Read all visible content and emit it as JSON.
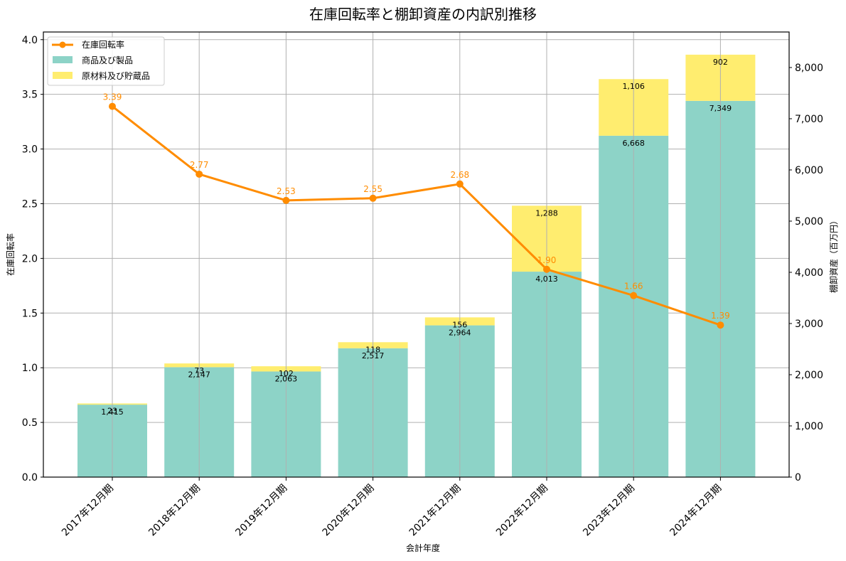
{
  "chart_data": {
    "type": "bar+line",
    "title": "在庫回転率と棚卸資産の内訳別推移",
    "xlabel": "会計年度",
    "ylabel_left": "在庫回転率",
    "ylabel_right": "棚卸資産（百万円）",
    "categories": [
      "2017年12月期",
      "2018年12月期",
      "2019年12月期",
      "2020年12月期",
      "2021年12月期",
      "2022年12月期",
      "2023年12月期",
      "2024年12月期"
    ],
    "series": [
      {
        "name": "在庫回転率",
        "type": "line",
        "axis": "left",
        "color": "#ff8c00",
        "values": [
          3.39,
          2.77,
          2.53,
          2.55,
          2.68,
          1.9,
          1.66,
          1.39
        ],
        "labels": [
          "3.39",
          "2.77",
          "2.53",
          "2.55",
          "2.68",
          "1.90",
          "1.66",
          "1.39"
        ]
      },
      {
        "name": "商品及び製品",
        "type": "bar",
        "stacked": true,
        "axis": "right",
        "color": "#8dd3c7",
        "values": [
          1415,
          2147,
          2063,
          2517,
          2964,
          4013,
          6668,
          7349
        ],
        "labels": [
          "1,415",
          "2,147",
          "2,063",
          "2,517",
          "2,964",
          "4,013",
          "6,668",
          "7,349"
        ]
      },
      {
        "name": "原材料及び貯蔵品",
        "type": "bar",
        "stacked": true,
        "axis": "right",
        "color": "#ffed6f",
        "values": [
          23,
          73,
          102,
          118,
          156,
          1288,
          1106,
          902
        ],
        "labels": [
          "23",
          "73",
          "102",
          "118",
          "156",
          "1,288",
          "1,106",
          "902"
        ]
      }
    ],
    "ylim_left": [
      0,
      4.07
    ],
    "ylim_right": [
      0,
      8694
    ],
    "yticks_left": [
      "0.0",
      "0.5",
      "1.0",
      "1.5",
      "2.0",
      "2.5",
      "3.0",
      "3.5",
      "4.0"
    ],
    "yticks_right": [
      "0",
      "1,000",
      "2,000",
      "3,000",
      "4,000",
      "5,000",
      "6,000",
      "7,000",
      "8,000"
    ],
    "grid": true,
    "legend_position": "upper left"
  }
}
